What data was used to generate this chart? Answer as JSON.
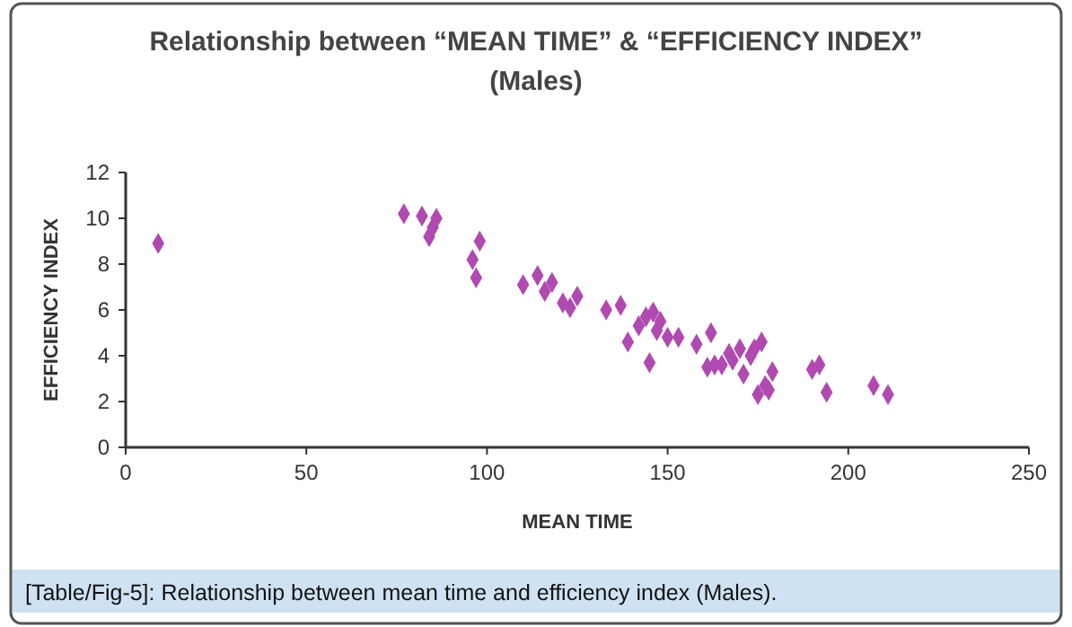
{
  "chart_data": {
    "type": "scatter",
    "title": "Relationship between “MEAN TIME” & “EFFICIENCY INDEX”\n(Males)",
    "xlabel": "MEAN TIME",
    "ylabel": "EFFICIENCY INDEX",
    "annotations": [
      "[Table/Fig-5]: Relationship between mean time and efficiency index (Males)."
    ],
    "x": [
      9,
      77,
      82,
      84,
      85,
      86,
      96,
      97,
      98,
      110,
      114,
      116,
      118,
      121,
      123,
      125,
      133,
      137,
      139,
      142,
      144,
      145,
      146,
      147,
      148,
      150,
      153,
      158,
      161,
      162,
      163,
      165,
      167,
      168,
      170,
      171,
      173,
      174,
      175,
      176,
      177,
      178,
      179,
      190,
      192,
      194,
      207,
      211
    ],
    "series": [
      {
        "color": "#b04ab0",
        "values": [
          8.9,
          10.2,
          10.1,
          9.2,
          9.6,
          10.0,
          8.2,
          7.4,
          9.0,
          7.1,
          7.5,
          6.8,
          7.2,
          6.3,
          6.1,
          6.6,
          6.0,
          6.2,
          4.6,
          5.3,
          5.7,
          3.7,
          5.9,
          5.1,
          5.5,
          4.8,
          4.8,
          4.5,
          3.5,
          5.0,
          3.6,
          3.6,
          4.1,
          3.8,
          4.3,
          3.2,
          4.0,
          4.3,
          2.3,
          4.6,
          2.7,
          2.5,
          3.3,
          3.4,
          3.6,
          2.4,
          2.7,
          2.3
        ]
      }
    ],
    "xlim": [
      0,
      250
    ],
    "xticks": [
      0,
      50,
      100,
      150,
      200,
      250
    ],
    "ylim": [
      0,
      12
    ],
    "yticks": [
      0,
      2,
      4,
      6,
      8,
      10,
      12
    ],
    "marker": "diamond"
  }
}
